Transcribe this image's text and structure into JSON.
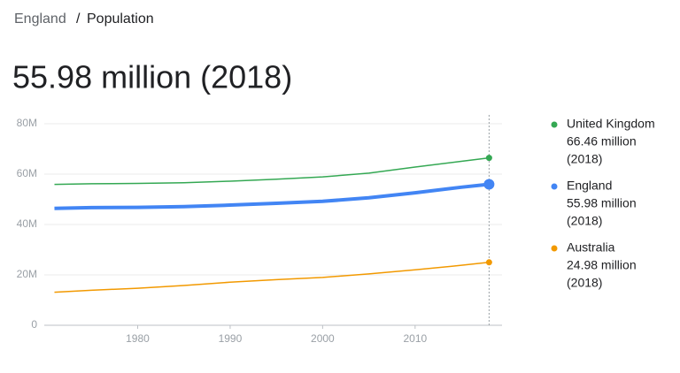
{
  "breadcrumb": {
    "parent": "England",
    "separator": "/",
    "current": "Population"
  },
  "headline": "55.98 million (2018)",
  "chart_data": {
    "type": "line",
    "x": [
      1971,
      1975,
      1980,
      1985,
      1990,
      1995,
      2000,
      2005,
      2010,
      2015,
      2018
    ],
    "series": [
      {
        "name": "United Kingdom",
        "color": "#34a853",
        "legend_value": "66.46 million",
        "legend_date": "(2018)",
        "values": [
          55.9,
          56.2,
          56.3,
          56.6,
          57.2,
          58.0,
          58.9,
          60.4,
          62.8,
          65.1,
          66.46
        ]
      },
      {
        "name": "England",
        "color": "#4285f4",
        "legend_value": "55.98 million",
        "legend_date": "(2018)",
        "values": [
          46.4,
          46.7,
          46.8,
          47.1,
          47.7,
          48.4,
          49.2,
          50.6,
          52.6,
          54.8,
          55.98
        ]
      },
      {
        "name": "Australia",
        "color": "#f29900",
        "legend_value": "24.98 million",
        "legend_date": "(2018)",
        "values": [
          13.1,
          13.9,
          14.7,
          15.8,
          17.1,
          18.1,
          19.0,
          20.4,
          22.0,
          23.8,
          24.98
        ]
      }
    ],
    "xlim": [
      1969.9,
      2019.4
    ],
    "xticks": [
      1980,
      1990,
      2000,
      2010
    ],
    "ylim": [
      0,
      80
    ],
    "yticks": [
      0,
      {
        "value": 20,
        "label": "20M"
      },
      {
        "value": 40,
        "label": "40M"
      },
      {
        "value": 60,
        "label": "60M"
      },
      {
        "value": 80,
        "label": "80M"
      }
    ],
    "grid": true,
    "highlight": 1
  }
}
